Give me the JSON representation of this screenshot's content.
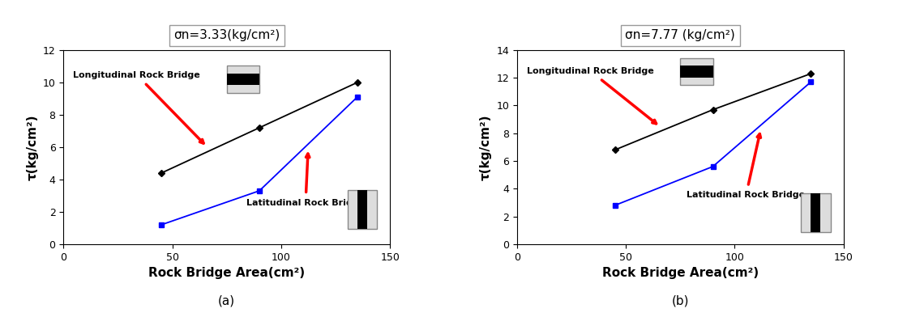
{
  "chart_data": [
    {
      "type": "line",
      "title": "σn=3.33(kg/cm²)",
      "x_label": "Rock Bridge Area(cm²)",
      "y_label": "τ(kg/cm²)",
      "x": [
        45,
        90,
        135
      ],
      "series": [
        {
          "name": "Longitudinal Rock Bridge",
          "color": "#000000",
          "marker": "diamond",
          "values": [
            4.4,
            7.2,
            10.0
          ]
        },
        {
          "name": "Latitudinal Rock Bridge",
          "color": "#0000ff",
          "marker": "square",
          "values": [
            1.2,
            3.3,
            9.1
          ]
        }
      ],
      "xlim": [
        0,
        150
      ],
      "xticks": [
        0,
        50,
        100,
        150
      ],
      "ylim": [
        0,
        12
      ],
      "yticks": [
        0,
        2,
        4,
        6,
        8,
        10,
        12
      ],
      "grid": false,
      "annotations": [
        "(a)"
      ]
    },
    {
      "type": "line",
      "title": "σn=7.77 (kg/cm²)",
      "x_label": "Rock Bridge Area(cm²)",
      "y_label": "τ(kg/cm²)",
      "x": [
        45,
        90,
        135
      ],
      "series": [
        {
          "name": "Longitudinal Rock Bridge",
          "color": "#000000",
          "marker": "diamond",
          "values": [
            6.8,
            9.7,
            12.3
          ]
        },
        {
          "name": "Latitudinal Rock Bridge",
          "color": "#0000ff",
          "marker": "square",
          "values": [
            2.8,
            5.6,
            11.7
          ]
        }
      ],
      "xlim": [
        0,
        150
      ],
      "xticks": [
        0,
        50,
        100,
        150
      ],
      "ylim": [
        0,
        14
      ],
      "yticks": [
        0,
        2,
        4,
        6,
        8,
        10,
        12,
        14
      ],
      "grid": false,
      "annotations": [
        "(b)"
      ]
    }
  ]
}
